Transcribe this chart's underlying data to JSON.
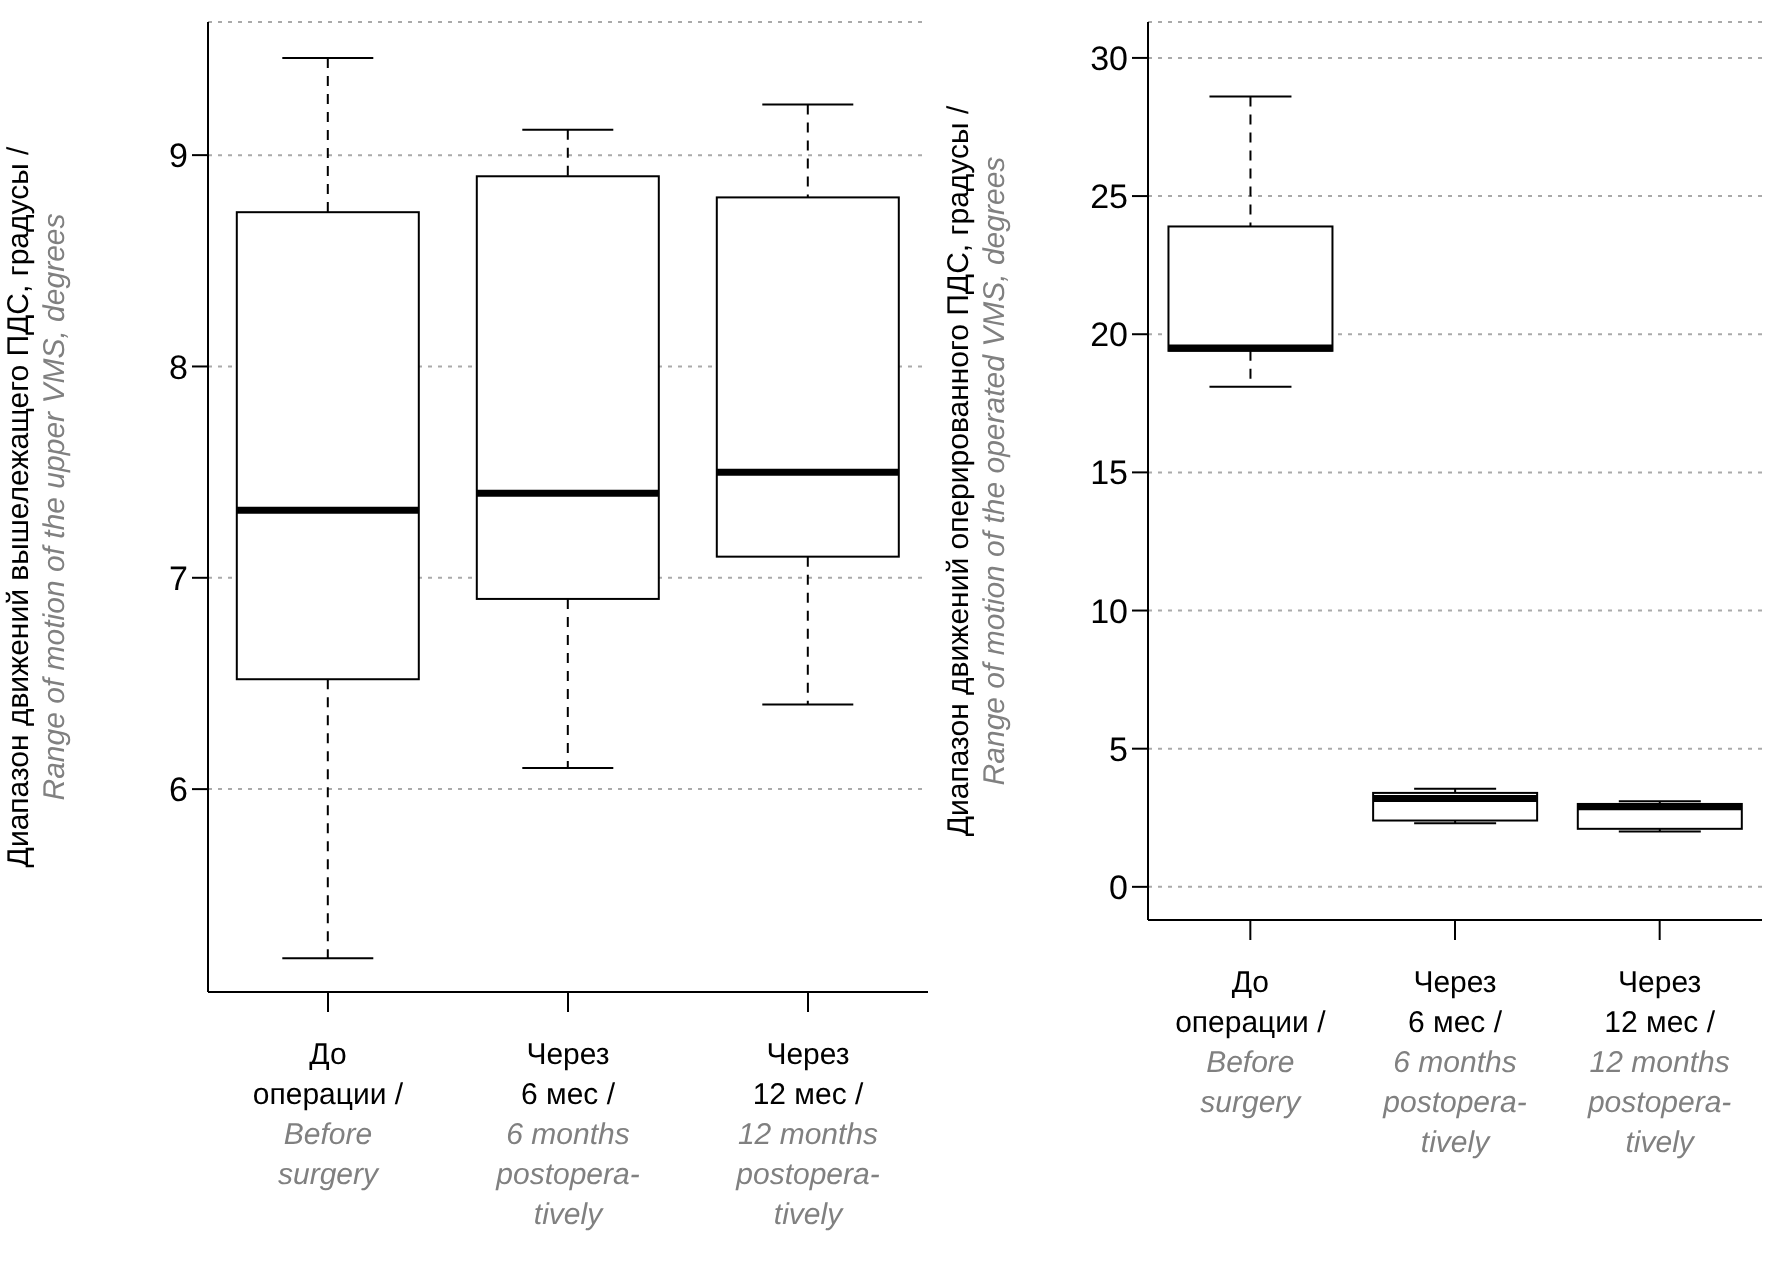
{
  "chart_data": [
    {
      "type": "box",
      "categories": [
        "До операции / Before surgery",
        "Через 6 мес / 6 months postopera- tively",
        "Через 12 мес / 12 months postopera- tively"
      ],
      "boxes": [
        {
          "low": 5.2,
          "q1": 6.52,
          "median": 7.32,
          "q3": 8.73,
          "high": 9.46
        },
        {
          "low": 6.1,
          "q1": 6.9,
          "median": 7.4,
          "q3": 8.9,
          "high": 9.12
        },
        {
          "low": 6.4,
          "q1": 7.1,
          "median": 7.5,
          "q3": 8.8,
          "high": 9.24
        }
      ],
      "ylabel": "Диапазон движений вышележащего ПДС, градусы / Range of motion of the upper VMS, degrees",
      "ylim": [
        5.04,
        9.63
      ],
      "yticks": [
        6,
        7,
        8,
        9
      ],
      "grid": "y"
    },
    {
      "type": "box",
      "categories": [
        "До операции / Before surgery",
        "Через 6 мес / 6 months postopera- tively",
        "Через 12 мес / 12 months postopera- tively"
      ],
      "boxes": [
        {
          "low": 18.1,
          "q1": 19.4,
          "median": 19.5,
          "q3": 23.9,
          "high": 28.6
        },
        {
          "low": 2.3,
          "q1": 2.4,
          "median": 3.2,
          "q3": 3.4,
          "high": 3.55
        },
        {
          "low": 2.0,
          "q1": 2.1,
          "median": 2.9,
          "q3": 3.0,
          "high": 3.1
        }
      ],
      "ylabel": "Диапазон движений оперированного ПДС, градусы / Range of motion of the operated VMS, degrees",
      "ylim": [
        -1.2,
        31.3
      ],
      "yticks": [
        0,
        5,
        10,
        15,
        20,
        25,
        30
      ],
      "grid": "y"
    }
  ]
}
